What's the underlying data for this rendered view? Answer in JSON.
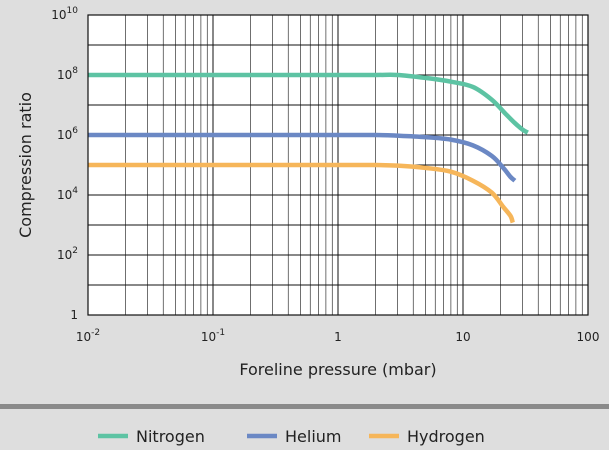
{
  "chart_data": {
    "type": "line",
    "title": "",
    "xlabel": "Foreline pressure (mbar)",
    "ylabel": "Compression ratio",
    "x_scale": "log",
    "y_scale": "log",
    "xlim": [
      0.01,
      100
    ],
    "ylim": [
      1,
      10000000000
    ],
    "grid": true,
    "legend_position": "bottom",
    "x_ticks": [
      {
        "value": 0.01,
        "base": "10",
        "exp": "-2"
      },
      {
        "value": 0.1,
        "base": "10",
        "exp": "-1"
      },
      {
        "value": 1,
        "base": "1",
        "exp": ""
      },
      {
        "value": 10,
        "base": "10",
        "exp": ""
      },
      {
        "value": 100,
        "base": "100",
        "exp": ""
      }
    ],
    "y_ticks": [
      {
        "value": 1,
        "base": "1",
        "exp": ""
      },
      {
        "value": 100,
        "base": "10",
        "exp": "2"
      },
      {
        "value": 10000,
        "base": "10",
        "exp": "4"
      },
      {
        "value": 1000000,
        "base": "10",
        "exp": "6"
      },
      {
        "value": 100000000,
        "base": "10",
        "exp": "8"
      },
      {
        "value": 10000000000,
        "base": "10",
        "exp": "10"
      }
    ],
    "series": [
      {
        "name": "Nitrogen",
        "color": "#5dc3a3",
        "points": [
          [
            0.01,
            100000000
          ],
          [
            0.1,
            100000000
          ],
          [
            1,
            100000000
          ],
          [
            2,
            100000000
          ],
          [
            3,
            100000000
          ],
          [
            5,
            80000000
          ],
          [
            8,
            60000000
          ],
          [
            12,
            40000000
          ],
          [
            17,
            15000000
          ],
          [
            22,
            5000000
          ],
          [
            26,
            2500000
          ],
          [
            30,
            1500000
          ],
          [
            33,
            1200000
          ]
        ]
      },
      {
        "name": "Helium",
        "color": "#6b88c4",
        "points": [
          [
            0.01,
            1000000
          ],
          [
            0.1,
            1000000
          ],
          [
            1,
            1000000
          ],
          [
            2,
            1000000
          ],
          [
            3,
            950000
          ],
          [
            5,
            850000
          ],
          [
            8,
            700000
          ],
          [
            12,
            450000
          ],
          [
            17,
            200000
          ],
          [
            21,
            80000
          ],
          [
            24,
            40000
          ],
          [
            26,
            30000
          ]
        ]
      },
      {
        "name": "Hydrogen",
        "color": "#f6b65a",
        "points": [
          [
            0.01,
            100000
          ],
          [
            0.1,
            100000
          ],
          [
            1,
            100000
          ],
          [
            2,
            100000
          ],
          [
            3,
            95000
          ],
          [
            5,
            80000
          ],
          [
            8,
            60000
          ],
          [
            12,
            30000
          ],
          [
            17,
            12000
          ],
          [
            21,
            4000
          ],
          [
            24,
            2000
          ],
          [
            25,
            1200
          ]
        ]
      }
    ]
  }
}
